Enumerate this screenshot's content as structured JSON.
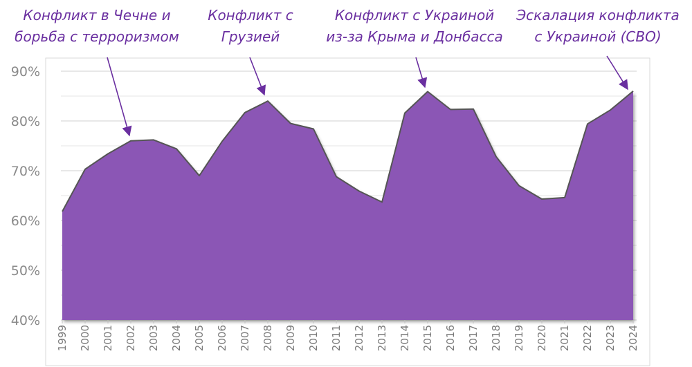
{
  "chart_data": {
    "type": "area",
    "title": "",
    "xlabel": "",
    "ylabel": "",
    "ylim": [
      40,
      90
    ],
    "y_ticks": [
      "40%",
      "50%",
      "60%",
      "70%",
      "80%",
      "90%"
    ],
    "grid": true,
    "colors": {
      "fill": "#8B57B5",
      "line": "#555555",
      "annotation": "#6A2FA0"
    },
    "x": [
      "1999",
      "2000",
      "2001",
      "2002",
      "2003",
      "2004",
      "2005",
      "2006",
      "2007",
      "2008",
      "2009",
      "2010",
      "2011",
      "2012",
      "2013",
      "2014",
      "2015",
      "2016",
      "2017",
      "2018",
      "2019",
      "2020",
      "2021",
      "2022",
      "2023",
      "2024"
    ],
    "values": [
      61.8,
      70.3,
      73.4,
      76.0,
      76.2,
      74.4,
      69.0,
      75.9,
      81.7,
      84.0,
      79.5,
      78.4,
      68.8,
      65.9,
      63.7,
      81.6,
      85.9,
      82.3,
      82.4,
      72.8,
      67.0,
      64.3,
      64.6,
      79.4,
      82.2,
      86.0
    ],
    "annotations": [
      {
        "lines": [
          "Конфликт в Чечне и",
          "борьба с терроризмом"
        ],
        "target": "2002"
      },
      {
        "lines": [
          "Конфликт с",
          "Грузией"
        ],
        "target": "2008"
      },
      {
        "lines": [
          "Конфликт с Украиной",
          "из-за Крыма и Донбасса"
        ],
        "target": "2015"
      },
      {
        "lines": [
          "Эскалация конфликта",
          "с Украиной (СВО)"
        ],
        "target": "2024"
      }
    ]
  }
}
